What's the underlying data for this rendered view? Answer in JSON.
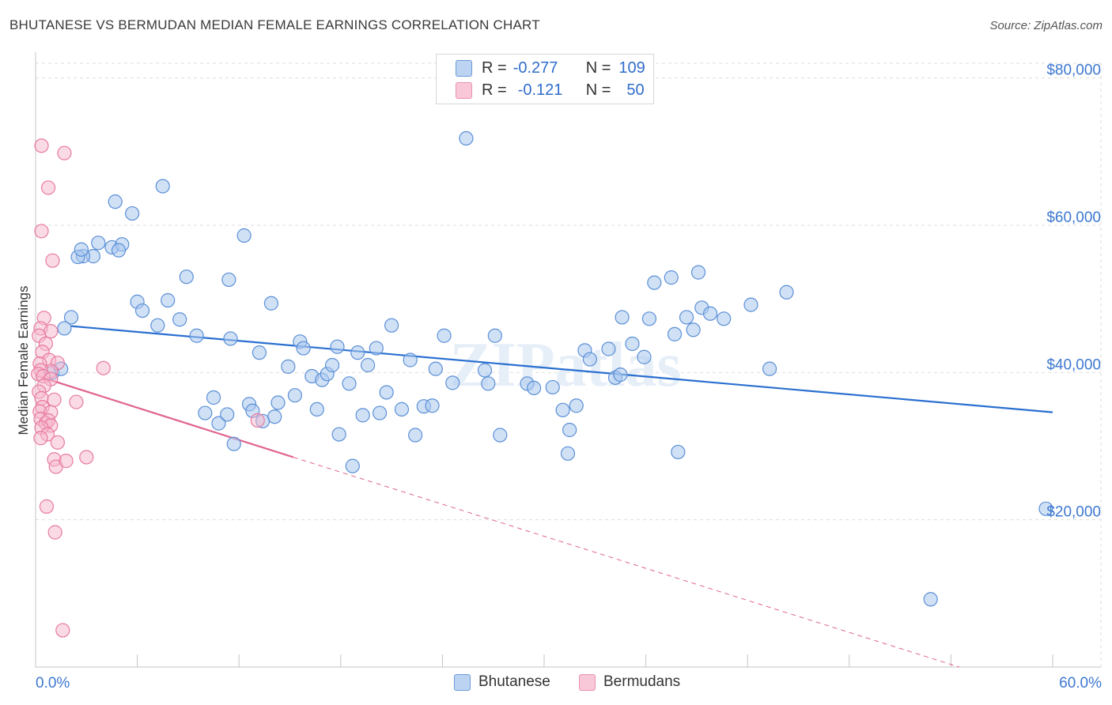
{
  "title": "BHUTANESE VS BERMUDAN MEDIAN FEMALE EARNINGS CORRELATION CHART",
  "source": "Source: ZipAtlas.com",
  "watermark": "ZIPatlas",
  "legend": {
    "rows": [
      {
        "r_label": "R =",
        "r_value": "-0.277",
        "n_label": "N =",
        "n_value": "109"
      },
      {
        "r_label": "R =",
        "r_value": "-0.121",
        "n_label": "N =",
        "n_value": "50"
      }
    ],
    "bottom": [
      "Bhutanese",
      "Bermudans"
    ]
  },
  "colors": {
    "blue_fill": "#a9c8ef",
    "blue_stroke": "#5b8fd6",
    "blue_line": "#2a6fd0",
    "pink_fill": "#f6b8cc",
    "pink_stroke": "#e87a9f",
    "pink_line": "#e0648e",
    "tick_text": "#3d78d0"
  },
  "chart_data": {
    "type": "scatter",
    "title": "BHUTANESE VS BERMUDAN MEDIAN FEMALE EARNINGS CORRELATION CHART",
    "xlabel": "",
    "ylabel": "Median Female Earnings",
    "xlim": [
      0,
      60
    ],
    "ylim": [
      0,
      82000
    ],
    "x_tick_labels": [
      "0.0%",
      "60.0%"
    ],
    "y_ticks": [
      20000,
      40000,
      60000,
      80000
    ],
    "y_tick_labels": [
      "$20,000",
      "$40,000",
      "$60,000",
      "$80,000"
    ],
    "grid": true,
    "legend_placement": "top-center",
    "series": [
      {
        "name": "Bhutanese",
        "points": [
          [
            2.1,
            47500
          ],
          [
            1.7,
            46000
          ],
          [
            1.0,
            40000
          ],
          [
            1.5,
            40500
          ],
          [
            3.4,
            55800
          ],
          [
            2.8,
            55800
          ],
          [
            2.5,
            55700
          ],
          [
            2.7,
            56700
          ],
          [
            3.7,
            57600
          ],
          [
            4.5,
            57000
          ],
          [
            5.1,
            57400
          ],
          [
            4.9,
            56600
          ],
          [
            4.7,
            63200
          ],
          [
            5.7,
            61600
          ],
          [
            7.5,
            65300
          ],
          [
            6.0,
            49600
          ],
          [
            6.3,
            48400
          ],
          [
            7.2,
            46400
          ],
          [
            7.8,
            49800
          ],
          [
            8.5,
            47200
          ],
          [
            8.9,
            53000
          ],
          [
            9.5,
            45000
          ],
          [
            10.5,
            36600
          ],
          [
            10.0,
            34500
          ],
          [
            10.8,
            33100
          ],
          [
            11.3,
            34300
          ],
          [
            11.4,
            52600
          ],
          [
            11.5,
            44600
          ],
          [
            11.7,
            30300
          ],
          [
            12.3,
            58600
          ],
          [
            12.6,
            35700
          ],
          [
            12.8,
            34800
          ],
          [
            13.2,
            42700
          ],
          [
            13.4,
            33400
          ],
          [
            13.9,
            49400
          ],
          [
            14.1,
            34000
          ],
          [
            14.3,
            35900
          ],
          [
            14.9,
            40800
          ],
          [
            15.3,
            36900
          ],
          [
            15.6,
            44200
          ],
          [
            15.8,
            43300
          ],
          [
            16.3,
            39500
          ],
          [
            16.6,
            35000
          ],
          [
            16.9,
            39000
          ],
          [
            17.2,
            39800
          ],
          [
            17.5,
            41000
          ],
          [
            17.8,
            43500
          ],
          [
            17.9,
            31600
          ],
          [
            18.5,
            38500
          ],
          [
            18.7,
            27300
          ],
          [
            19.0,
            42700
          ],
          [
            19.3,
            34200
          ],
          [
            19.6,
            41000
          ],
          [
            20.1,
            43300
          ],
          [
            20.3,
            34500
          ],
          [
            20.7,
            37300
          ],
          [
            21.0,
            46400
          ],
          [
            21.6,
            35000
          ],
          [
            22.1,
            41700
          ],
          [
            22.4,
            31500
          ],
          [
            22.9,
            35400
          ],
          [
            23.4,
            35500
          ],
          [
            23.6,
            40500
          ],
          [
            24.1,
            45000
          ],
          [
            24.6,
            38600
          ],
          [
            25.4,
            71800
          ],
          [
            26.5,
            40300
          ],
          [
            26.7,
            38500
          ],
          [
            27.1,
            45000
          ],
          [
            27.4,
            31500
          ],
          [
            29.0,
            38500
          ],
          [
            29.4,
            37900
          ],
          [
            30.5,
            38000
          ],
          [
            31.1,
            34900
          ],
          [
            31.4,
            29000
          ],
          [
            31.5,
            32200
          ],
          [
            31.9,
            35500
          ],
          [
            32.4,
            43000
          ],
          [
            32.7,
            41800
          ],
          [
            33.8,
            43200
          ],
          [
            34.2,
            39300
          ],
          [
            34.5,
            39700
          ],
          [
            34.6,
            47500
          ],
          [
            35.2,
            43900
          ],
          [
            35.9,
            42100
          ],
          [
            36.2,
            47300
          ],
          [
            36.5,
            52200
          ],
          [
            37.5,
            52900
          ],
          [
            37.7,
            45200
          ],
          [
            37.9,
            29200
          ],
          [
            38.4,
            47500
          ],
          [
            38.8,
            45800
          ],
          [
            39.1,
            53600
          ],
          [
            39.3,
            48800
          ],
          [
            39.8,
            48000
          ],
          [
            40.6,
            47300
          ],
          [
            42.2,
            49200
          ],
          [
            43.3,
            40500
          ],
          [
            44.3,
            50900
          ],
          [
            52.8,
            9200
          ],
          [
            59.6,
            21500
          ]
        ],
        "trend": {
          "x": [
            2.1,
            60
          ],
          "y": [
            46300,
            34600
          ]
        }
      },
      {
        "name": "Bermudans",
        "points": [
          [
            0.35,
            70800
          ],
          [
            1.7,
            69800
          ],
          [
            0.75,
            65100
          ],
          [
            0.35,
            59200
          ],
          [
            1.0,
            55200
          ],
          [
            0.5,
            47400
          ],
          [
            0.3,
            46000
          ],
          [
            0.9,
            45600
          ],
          [
            0.2,
            45000
          ],
          [
            0.6,
            43900
          ],
          [
            0.4,
            42800
          ],
          [
            0.8,
            41700
          ],
          [
            1.3,
            41300
          ],
          [
            0.25,
            41200
          ],
          [
            0.9,
            40200
          ],
          [
            0.3,
            40300
          ],
          [
            0.15,
            39800
          ],
          [
            0.45,
            39500
          ],
          [
            0.9,
            39100
          ],
          [
            4.0,
            40600
          ],
          [
            0.5,
            38200
          ],
          [
            0.2,
            37400
          ],
          [
            0.35,
            36500
          ],
          [
            1.1,
            36300
          ],
          [
            2.4,
            36000
          ],
          [
            0.4,
            35300
          ],
          [
            0.25,
            34700
          ],
          [
            0.9,
            34600
          ],
          [
            0.3,
            33700
          ],
          [
            0.6,
            33100
          ],
          [
            0.75,
            33500
          ],
          [
            0.9,
            32800
          ],
          [
            13.1,
            33500
          ],
          [
            0.35,
            32500
          ],
          [
            0.7,
            31600
          ],
          [
            0.3,
            31100
          ],
          [
            1.3,
            30500
          ],
          [
            1.1,
            28200
          ],
          [
            1.2,
            27200
          ],
          [
            1.8,
            28000
          ],
          [
            3.0,
            28500
          ],
          [
            0.65,
            21800
          ],
          [
            1.15,
            18300
          ],
          [
            1.6,
            5000
          ]
        ],
        "trend": {
          "x": [
            0.15,
            15.2
          ],
          "y": [
            39500,
            28500
          ]
        },
        "trend_extended": {
          "x": [
            15.2,
            60
          ],
          "y": [
            28500,
            -4000
          ]
        }
      }
    ]
  }
}
